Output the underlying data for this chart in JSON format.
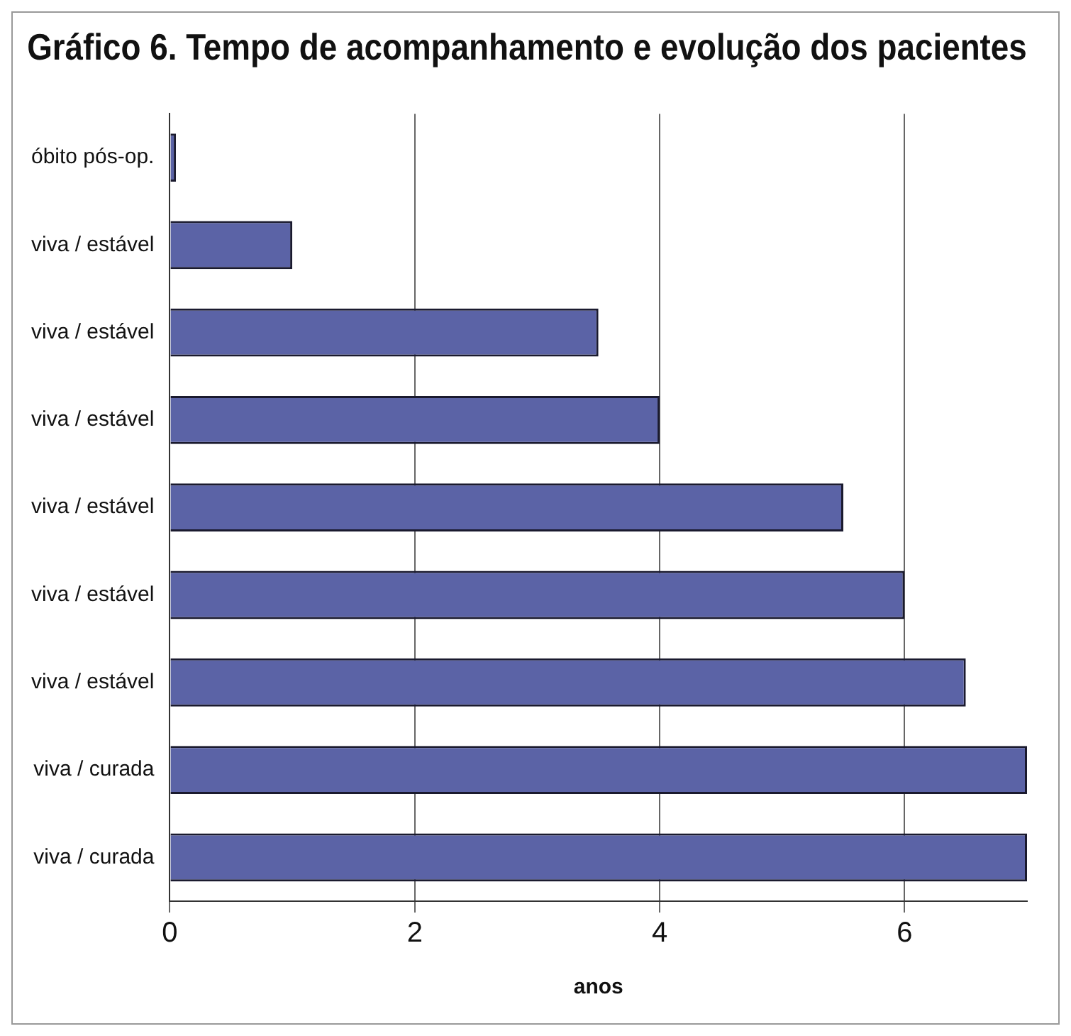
{
  "chart_data": {
    "type": "bar",
    "orientation": "horizontal",
    "title": "Gráfico 6. Tempo de acompanhamento e evolução dos pacientes",
    "xlabel": "anos",
    "categories": [
      "óbito pós-op.",
      "viva / estável",
      "viva / estável",
      "viva / estável",
      "viva / estável",
      "viva / estável",
      "viva / estável",
      "viva / curada",
      "viva / curada"
    ],
    "values": [
      0.05,
      1.0,
      3.5,
      4.0,
      5.5,
      6.0,
      6.5,
      7.0,
      7.0
    ],
    "color": "#5b63a6",
    "xlim": [
      0,
      7
    ],
    "xticks": [
      0,
      2,
      4,
      6
    ],
    "grid": "x",
    "legend": false
  }
}
